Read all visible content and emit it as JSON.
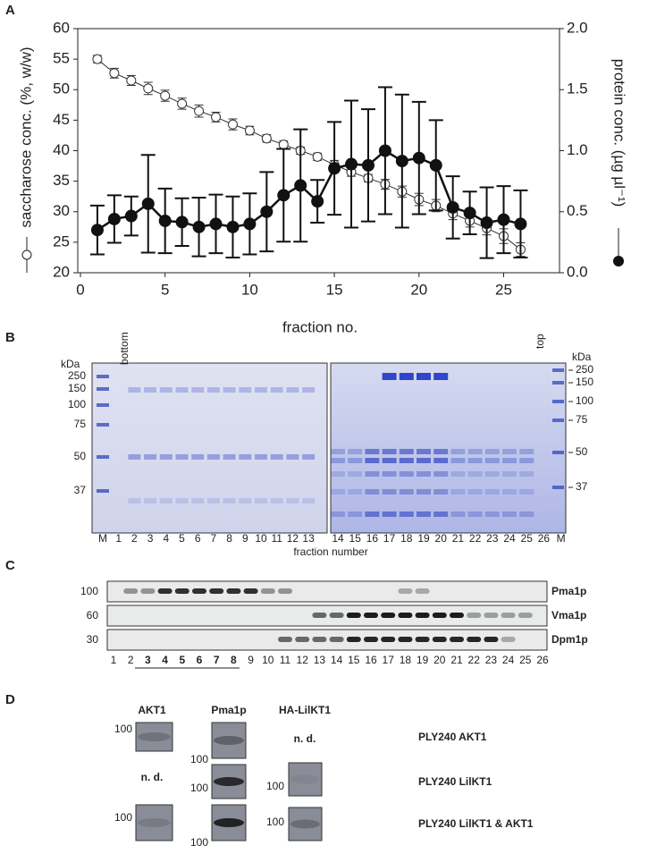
{
  "chart_data": {
    "type": "line",
    "xlabel": "fraction no.",
    "ylabel": "saccharose conc. (%, w/w)",
    "y2label": "protein conc. (µg µl⁻¹)",
    "x": [
      1,
      2,
      3,
      4,
      5,
      6,
      7,
      8,
      9,
      10,
      11,
      12,
      13,
      14,
      15,
      16,
      17,
      18,
      19,
      20,
      21,
      22,
      23,
      24,
      25,
      26
    ],
    "xlim": [
      0,
      28.3
    ],
    "xticks": [
      0,
      5,
      10,
      15,
      20,
      25
    ],
    "ylim": [
      20,
      60
    ],
    "yticks": [
      20,
      25,
      30,
      35,
      40,
      45,
      50,
      55,
      60
    ],
    "y2lim": [
      0,
      2
    ],
    "y2ticks": [
      {
        "value": 0,
        "label": "0.0"
      },
      0.5,
      {
        "value": 1,
        "label": "1.0"
      },
      1.5,
      {
        "value": 2,
        "label": "2.0"
      }
    ],
    "series": [
      {
        "marker": "open",
        "color": "#333333",
        "values": [
          55,
          52.7,
          51.5,
          50.2,
          49,
          47.7,
          46.5,
          45.5,
          44.3,
          43.3,
          42,
          41,
          40,
          39,
          37.7,
          36.5,
          35.5,
          34.5,
          33.3,
          32,
          31,
          29.7,
          28.5,
          27.3,
          26,
          23.8
        ],
        "errors": [
          0.6,
          0.8,
          0.8,
          1,
          0.9,
          0.9,
          1,
          0.8,
          0.9,
          0.7,
          0.6,
          0.6,
          0.6,
          0.6,
          0.7,
          0.7,
          0.6,
          0.8,
          0.9,
          1,
          1,
          1,
          1,
          1.1,
          1.2,
          1.1
        ]
      },
      {
        "marker": "filled",
        "color": "#111111",
        "axis": "y2",
        "values": [
          0.35,
          0.44,
          0.465,
          0.565,
          0.425,
          0.415,
          0.375,
          0.4,
          0.375,
          0.4,
          0.5,
          0.635,
          0.715,
          0.585,
          0.855,
          0.89,
          0.88,
          1.0,
          0.915,
          0.94,
          0.88,
          0.535,
          0.49,
          0.41,
          0.435,
          0.4
        ],
        "errors": [
          0.2,
          0.195,
          0.16,
          0.4,
          0.265,
          0.195,
          0.24,
          0.24,
          0.25,
          0.25,
          0.325,
          0.38,
          0.46,
          0.175,
          0.38,
          0.52,
          0.46,
          0.52,
          0.545,
          0.46,
          0.37,
          0.255,
          0.175,
          0.29,
          0.275,
          0.275
        ]
      }
    ]
  },
  "figure": {
    "panel_labels": [
      "A",
      "B",
      "C",
      "D"
    ],
    "panel_b": {
      "kda": [
        "kDa",
        "kDa"
      ],
      "bottom": "bottom",
      "top": "top",
      "xlabel": "fraction number",
      "markers_left": [
        "250",
        "150",
        "100",
        "75",
        "50",
        "37"
      ],
      "markers_right": [
        "250",
        "150",
        "100",
        "75",
        "50",
        "37"
      ],
      "lanes_left": [
        "M",
        "1",
        "2",
        "3",
        "4",
        "5",
        "6",
        "7",
        "8",
        "9",
        "10",
        "11",
        "12",
        "13"
      ],
      "lanes_right": [
        "14",
        "15",
        "16",
        "17",
        "18",
        "19",
        "20",
        "21",
        "22",
        "23",
        "24",
        "25",
        "26",
        "M"
      ]
    },
    "panel_c": {
      "rows": [
        {
          "marker": "100",
          "name": "Pma1p"
        },
        {
          "marker": "60",
          "name": "Vma1p"
        },
        {
          "marker": "30",
          "name": "Dpm1p"
        }
      ],
      "lanes": [
        "1",
        "2",
        "3",
        "4",
        "5",
        "6",
        "7",
        "8",
        "9",
        "10",
        "11",
        "12",
        "13",
        "14",
        "15",
        "16",
        "17",
        "18",
        "19",
        "20",
        "21",
        "22",
        "23",
        "24",
        "25",
        "26"
      ]
    },
    "panel_d": {
      "columns": [
        "AKT1",
        "Pma1p",
        "HA-LilKT1"
      ],
      "rows": [
        "PLY240 AKT1",
        "PLY240 LilKT1",
        "PLY240 LilKT1 & AKT1"
      ],
      "markers": [
        "100",
        "100",
        "100",
        "100",
        "100",
        "100",
        "100"
      ],
      "not_detected": [
        "n. d.",
        "n. d."
      ]
    }
  }
}
